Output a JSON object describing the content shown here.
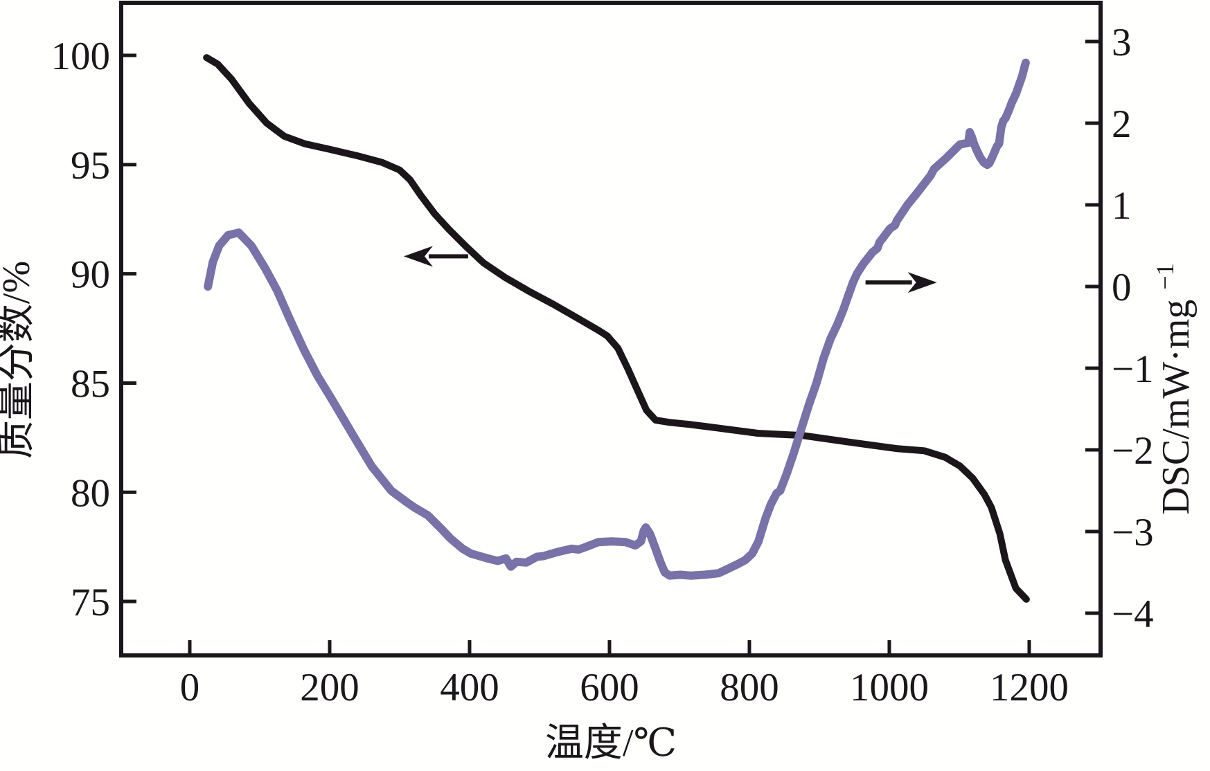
{
  "chart_data": {
    "type": "line",
    "title": "",
    "xlabel": "温度/℃",
    "ylabel_left": "质量分数/%",
    "ylabel_right_base": "DSC/mW·mg",
    "ylabel_right_sup": "−1",
    "x_ticks": [
      0,
      200,
      400,
      600,
      800,
      1000,
      1200
    ],
    "y_left_ticks": [
      100,
      95,
      90,
      85,
      80,
      75
    ],
    "y_right_ticks": [
      3,
      2,
      1,
      0,
      -1,
      -2,
      -3,
      -4
    ],
    "x_range": [
      -98,
      1302
    ],
    "y_left_range": [
      72.53,
      102.41
    ],
    "y_right_range": [
      -4.517,
      3.475
    ],
    "grid": false,
    "legend": "none",
    "series": [
      {
        "name": "TG mass-loss curve (质量分数)",
        "axis": "left",
        "color": "#1a161a",
        "width": 10,
        "points": [
          [
            24,
            99.9
          ],
          [
            40,
            99.6
          ],
          [
            60,
            98.9
          ],
          [
            85,
            97.8
          ],
          [
            110,
            96.9
          ],
          [
            135,
            96.3
          ],
          [
            165,
            95.95
          ],
          [
            200,
            95.7
          ],
          [
            240,
            95.4
          ],
          [
            275,
            95.1
          ],
          [
            300,
            94.75
          ],
          [
            315,
            94.3
          ],
          [
            330,
            93.6
          ],
          [
            350,
            92.75
          ],
          [
            370,
            92.05
          ],
          [
            395,
            91.25
          ],
          [
            420,
            90.5
          ],
          [
            450,
            89.85
          ],
          [
            485,
            89.2
          ],
          [
            520,
            88.6
          ],
          [
            550,
            88.05
          ],
          [
            585,
            87.4
          ],
          [
            597,
            87.15
          ],
          [
            612,
            86.6
          ],
          [
            627,
            85.6
          ],
          [
            641,
            84.6
          ],
          [
            653,
            83.75
          ],
          [
            666,
            83.3
          ],
          [
            686,
            83.2
          ],
          [
            716,
            83.1
          ],
          [
            752,
            82.95
          ],
          [
            812,
            82.7
          ],
          [
            876,
            82.6
          ],
          [
            942,
            82.3
          ],
          [
            1010,
            82.0
          ],
          [
            1050,
            81.9
          ],
          [
            1080,
            81.6
          ],
          [
            1101,
            81.2
          ],
          [
            1119,
            80.65
          ],
          [
            1136,
            79.9
          ],
          [
            1146,
            79.3
          ],
          [
            1158,
            78.1
          ],
          [
            1166,
            76.9
          ],
          [
            1181,
            75.6
          ],
          [
            1196,
            75.1
          ]
        ]
      },
      {
        "name": "DSC curve",
        "axis": "right",
        "color": "#7872a8",
        "width": 12,
        "points": [
          [
            26,
            0.0
          ],
          [
            33,
            0.3
          ],
          [
            42,
            0.5
          ],
          [
            55,
            0.63
          ],
          [
            70,
            0.66
          ],
          [
            88,
            0.5
          ],
          [
            108,
            0.22
          ],
          [
            125,
            -0.05
          ],
          [
            143,
            -0.4
          ],
          [
            163,
            -0.77
          ],
          [
            183,
            -1.1
          ],
          [
            203,
            -1.38
          ],
          [
            232,
            -1.8
          ],
          [
            260,
            -2.2
          ],
          [
            288,
            -2.5
          ],
          [
            310,
            -2.64
          ],
          [
            322,
            -2.71
          ],
          [
            340,
            -2.8
          ],
          [
            360,
            -2.97
          ],
          [
            372,
            -3.08
          ],
          [
            390,
            -3.21
          ],
          [
            402,
            -3.27
          ],
          [
            422,
            -3.32
          ],
          [
            440,
            -3.36
          ],
          [
            452,
            -3.33
          ],
          [
            459,
            -3.43
          ],
          [
            467,
            -3.37
          ],
          [
            481,
            -3.38
          ],
          [
            496,
            -3.31
          ],
          [
            506,
            -3.3
          ],
          [
            526,
            -3.25
          ],
          [
            546,
            -3.21
          ],
          [
            556,
            -3.22
          ],
          [
            566,
            -3.19
          ],
          [
            584,
            -3.13
          ],
          [
            603,
            -3.12
          ],
          [
            623,
            -3.13
          ],
          [
            637,
            -3.17
          ],
          [
            645,
            -3.12
          ],
          [
            649,
            -2.99
          ],
          [
            652,
            -2.95
          ],
          [
            658,
            -3.03
          ],
          [
            665,
            -3.19
          ],
          [
            673,
            -3.38
          ],
          [
            679,
            -3.5
          ],
          [
            686,
            -3.54
          ],
          [
            701,
            -3.53
          ],
          [
            716,
            -3.54
          ],
          [
            736,
            -3.53
          ],
          [
            756,
            -3.51
          ],
          [
            771,
            -3.45
          ],
          [
            783,
            -3.4
          ],
          [
            794,
            -3.35
          ],
          [
            804,
            -3.27
          ],
          [
            813,
            -3.12
          ],
          [
            823,
            -2.84
          ],
          [
            831,
            -2.66
          ],
          [
            839,
            -2.53
          ],
          [
            844,
            -2.5
          ],
          [
            853,
            -2.3
          ],
          [
            863,
            -2.05
          ],
          [
            874,
            -1.75
          ],
          [
            885,
            -1.45
          ],
          [
            896,
            -1.18
          ],
          [
            906,
            -0.88
          ],
          [
            916,
            -0.64
          ],
          [
            926,
            -0.46
          ],
          [
            934,
            -0.29
          ],
          [
            941,
            -0.12
          ],
          [
            948,
            0.05
          ],
          [
            954,
            0.16
          ],
          [
            963,
            0.28
          ],
          [
            976,
            0.42
          ],
          [
            983,
            0.47
          ],
          [
            986,
            0.54
          ],
          [
            1001,
            0.71
          ],
          [
            1008,
            0.75
          ],
          [
            1011,
            0.81
          ],
          [
            1026,
            1.0
          ],
          [
            1041,
            1.16
          ],
          [
            1059,
            1.36
          ],
          [
            1064,
            1.44
          ],
          [
            1081,
            1.57
          ],
          [
            1094,
            1.68
          ],
          [
            1101,
            1.74
          ],
          [
            1113,
            1.76
          ],
          [
            1115,
            1.89
          ],
          [
            1118,
            1.83
          ],
          [
            1121,
            1.75
          ],
          [
            1125,
            1.67
          ],
          [
            1130,
            1.58
          ],
          [
            1135,
            1.52
          ],
          [
            1140,
            1.49
          ],
          [
            1143,
            1.51
          ],
          [
            1147,
            1.58
          ],
          [
            1151,
            1.66
          ],
          [
            1154,
            1.72
          ],
          [
            1157,
            1.75
          ],
          [
            1160,
            1.95
          ],
          [
            1163,
            2.03
          ],
          [
            1166,
            2.06
          ],
          [
            1171,
            2.16
          ],
          [
            1175,
            2.25
          ],
          [
            1181,
            2.36
          ],
          [
            1186,
            2.48
          ],
          [
            1190,
            2.58
          ],
          [
            1193,
            2.68
          ],
          [
            1195,
            2.74
          ]
        ]
      }
    ],
    "annotations": {
      "arrows": [
        {
          "meaning": "TG curve reads on left axis",
          "y_axis": "left",
          "y": 90.8,
          "x_from": 398,
          "x_to": 306
        },
        {
          "meaning": "DSC curve reads on right axis",
          "y_axis": "right",
          "y": 0.05,
          "x_from": 966,
          "x_to": 1068
        }
      ]
    }
  }
}
